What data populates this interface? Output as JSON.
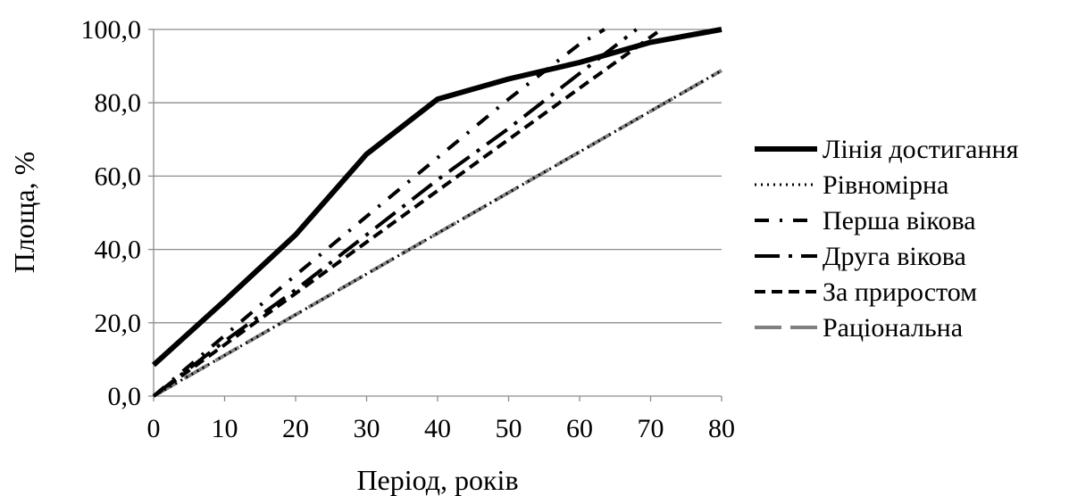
{
  "chart_data": {
    "type": "line",
    "xlabel": "Період, років",
    "ylabel": "Площа, %",
    "xlim": [
      0,
      80
    ],
    "ylim": [
      0,
      100
    ],
    "xticks": [
      0,
      10,
      20,
      30,
      40,
      50,
      60,
      70,
      80
    ],
    "yticks": [
      0,
      20,
      40,
      60,
      80,
      100
    ],
    "ytick_labels": [
      "0,0",
      "20,0",
      "40,0",
      "60,0",
      "80,0",
      "100,0"
    ],
    "xtick_labels": [
      "0",
      "10",
      "20",
      "30",
      "40",
      "50",
      "60",
      "70",
      "80"
    ],
    "grid": "horizontal",
    "legend_position": "right",
    "series": [
      {
        "name": "Лінія достигання",
        "style": "solid-thick",
        "color": "#000000",
        "x": [
          0,
          10,
          20,
          30,
          40,
          50,
          60,
          70,
          80
        ],
        "y": [
          8.5,
          26,
          44,
          66,
          81,
          86.5,
          91,
          96.5,
          100
        ]
      },
      {
        "name": "Рівномірна",
        "style": "dotted",
        "color": "#000000",
        "x": [
          0,
          80
        ],
        "y": [
          0,
          88.8
        ]
      },
      {
        "name": "Перша вікова",
        "style": "dash-dot",
        "color": "#000000",
        "x": [
          0,
          10,
          20,
          30,
          40,
          50,
          60,
          63.5
        ],
        "y": [
          0,
          16.5,
          33,
          49,
          65,
          81,
          96,
          100
        ]
      },
      {
        "name": "Друга вікова",
        "style": "long-dash-dot",
        "color": "#000000",
        "x": [
          0,
          10,
          20,
          30,
          40,
          50,
          60,
          68
        ],
        "y": [
          0,
          15,
          29,
          44,
          59,
          73,
          88,
          100
        ]
      },
      {
        "name": "За приростом",
        "style": "dashed",
        "color": "#000000",
        "x": [
          0,
          10,
          20,
          30,
          40,
          50,
          60,
          71.5
        ],
        "y": [
          0,
          14,
          28,
          42,
          56,
          70,
          84,
          100
        ]
      },
      {
        "name": "Раціональна",
        "style": "long-dash-gray",
        "color": "#808080",
        "x": [
          0,
          80
        ],
        "y": [
          0,
          88.8
        ]
      }
    ]
  }
}
